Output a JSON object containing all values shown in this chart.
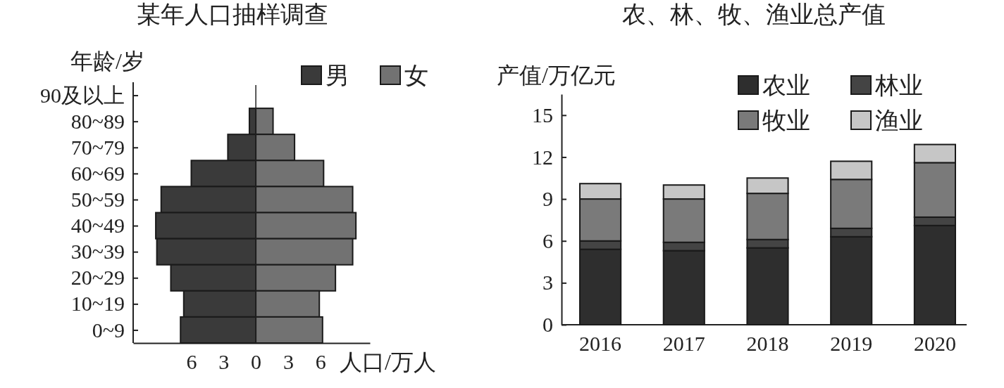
{
  "chart_data": [
    {
      "type": "bar",
      "title": "某年人口抽样调查",
      "ylabel": "年龄/岁",
      "xlabel": "人口/万人",
      "orientation": "horizontal",
      "stacked": true,
      "categories": [
        "90及以上",
        "80~89",
        "70~79",
        "60~69",
        "50~59",
        "40~49",
        "30~39",
        "20~29",
        "10~19",
        "0~9"
      ],
      "series": [
        {
          "name": "男",
          "color": "#3a3a3a",
          "values": [
            0,
            -0.6,
            -2.6,
            -6.0,
            -8.8,
            -9.3,
            -9.2,
            -7.9,
            -6.7,
            -7.0
          ]
        },
        {
          "name": "女",
          "color": "#727272",
          "values": [
            0,
            1.6,
            3.6,
            6.3,
            9.0,
            9.3,
            9.0,
            7.4,
            5.9,
            6.2
          ]
        }
      ],
      "xlim": [
        -11.4,
        10.6
      ],
      "xticks": [
        {
          "value": -6,
          "label": "6"
        },
        {
          "value": -3,
          "label": "3"
        },
        0,
        3,
        6
      ],
      "ref_lines": [
        {
          "axis": "x",
          "value": 0
        }
      ],
      "legend": "top right",
      "grid": false
    },
    {
      "type": "bar",
      "title": "农、林、牧、渔业总产值",
      "ylabel": "产值/万亿元",
      "stacked": true,
      "categories": [
        "2016",
        "2017",
        "2018",
        "2019",
        "2020"
      ],
      "series": [
        {
          "name": "农业",
          "color": "#2e2e2e",
          "values": [
            5.4,
            5.3,
            5.5,
            6.3,
            7.1
          ]
        },
        {
          "name": "林业",
          "color": "#444444",
          "values": [
            0.6,
            0.6,
            0.6,
            0.6,
            0.6
          ]
        },
        {
          "name": "牧业",
          "color": "#7a7a7a",
          "values": [
            3.0,
            3.1,
            3.3,
            3.5,
            3.9
          ]
        },
        {
          "name": "渔业",
          "color": "#c6c6c6",
          "values": [
            1.1,
            1.0,
            1.1,
            1.3,
            1.3
          ]
        }
      ],
      "ylim": [
        0,
        16.5
      ],
      "yticks": [
        0,
        3,
        6,
        9,
        12,
        15
      ],
      "legend": "top right",
      "grid": false
    }
  ]
}
